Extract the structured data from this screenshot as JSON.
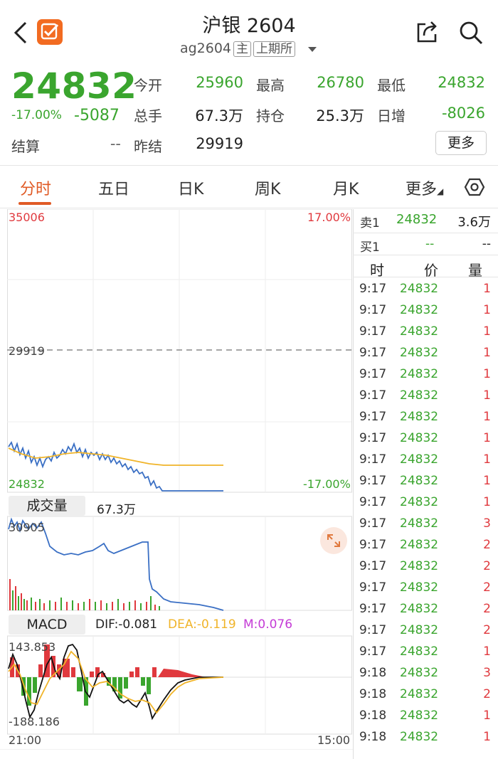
{
  "header": {
    "title": "沪银 2604",
    "code": "ag2604",
    "tag_main": "主",
    "exchange": "上期所"
  },
  "quote": {
    "last_price": "24832",
    "change_pct": "-17.00%",
    "change": "-5087",
    "settle_label": "结算",
    "settle_value": "--",
    "fields": [
      {
        "label": "今开",
        "value": "25960"
      },
      {
        "label": "最高",
        "value": "26780"
      },
      {
        "label": "最低",
        "value": "24832"
      },
      {
        "label": "总手",
        "value": "67.3万"
      },
      {
        "label": "持仓",
        "value": "25.3万"
      },
      {
        "label": "日增",
        "value": "-8026"
      },
      {
        "label": "昨结",
        "value": "29919"
      }
    ],
    "more_label": "更多"
  },
  "tabs": [
    "分时",
    "五日",
    "日K",
    "周K",
    "月K",
    "更多"
  ],
  "chart": {
    "top_price": "35006",
    "top_pct": "17.00%",
    "prev_settle": "29919",
    "bottom_price": "24832",
    "bottom_pct": "-17.00%",
    "volume_label": "成交量",
    "volume_value": "67.3万",
    "volume_top": "30905",
    "macd_label": "MACD",
    "dif": "DIF:-0.081",
    "dea": "DEA:-0.119",
    "m": "M:0.076",
    "macd_top": "143.853",
    "macd_bottom": "-188.186",
    "time_start": "21:00",
    "time_end": "15:00"
  },
  "orderbook": {
    "sell_label": "卖1",
    "sell_price": "24832",
    "sell_qty": "3.6万",
    "buy_label": "买1",
    "buy_price": "--",
    "buy_qty": "--",
    "col_time": "时",
    "col_price": "价",
    "col_qty": "量",
    "ticks": [
      {
        "t": "9:17",
        "p": "24832",
        "q": "1"
      },
      {
        "t": "9:17",
        "p": "24832",
        "q": "1"
      },
      {
        "t": "9:17",
        "p": "24832",
        "q": "1"
      },
      {
        "t": "9:17",
        "p": "24832",
        "q": "1"
      },
      {
        "t": "9:17",
        "p": "24832",
        "q": "1"
      },
      {
        "t": "9:17",
        "p": "24832",
        "q": "1"
      },
      {
        "t": "9:17",
        "p": "24832",
        "q": "1"
      },
      {
        "t": "9:17",
        "p": "24832",
        "q": "1"
      },
      {
        "t": "9:17",
        "p": "24832",
        "q": "1"
      },
      {
        "t": "9:17",
        "p": "24832",
        "q": "1"
      },
      {
        "t": "9:17",
        "p": "24832",
        "q": "1"
      },
      {
        "t": "9:17",
        "p": "24832",
        "q": "3"
      },
      {
        "t": "9:17",
        "p": "24832",
        "q": "2"
      },
      {
        "t": "9:17",
        "p": "24832",
        "q": "2"
      },
      {
        "t": "9:17",
        "p": "24832",
        "q": "2"
      },
      {
        "t": "9:17",
        "p": "24832",
        "q": "2"
      },
      {
        "t": "9:17",
        "p": "24832",
        "q": "2"
      },
      {
        "t": "9:17",
        "p": "24832",
        "q": "1"
      },
      {
        "t": "9:18",
        "p": "24832",
        "q": "3"
      },
      {
        "t": "9:18",
        "p": "24832",
        "q": "2"
      },
      {
        "t": "9:18",
        "p": "24832",
        "q": "1"
      },
      {
        "t": "9:18",
        "p": "24832",
        "q": "1"
      }
    ]
  },
  "colors": {
    "down": "#3aa52e",
    "up": "#e0393e",
    "accent": "#e05a25",
    "price_line": "#3a6fc4",
    "avg_line": "#f0b429"
  },
  "icons": [
    "back-icon",
    "app-logo-icon",
    "dropdown-icon",
    "share-icon",
    "search-icon",
    "settings-hex-icon",
    "expand-icon"
  ]
}
